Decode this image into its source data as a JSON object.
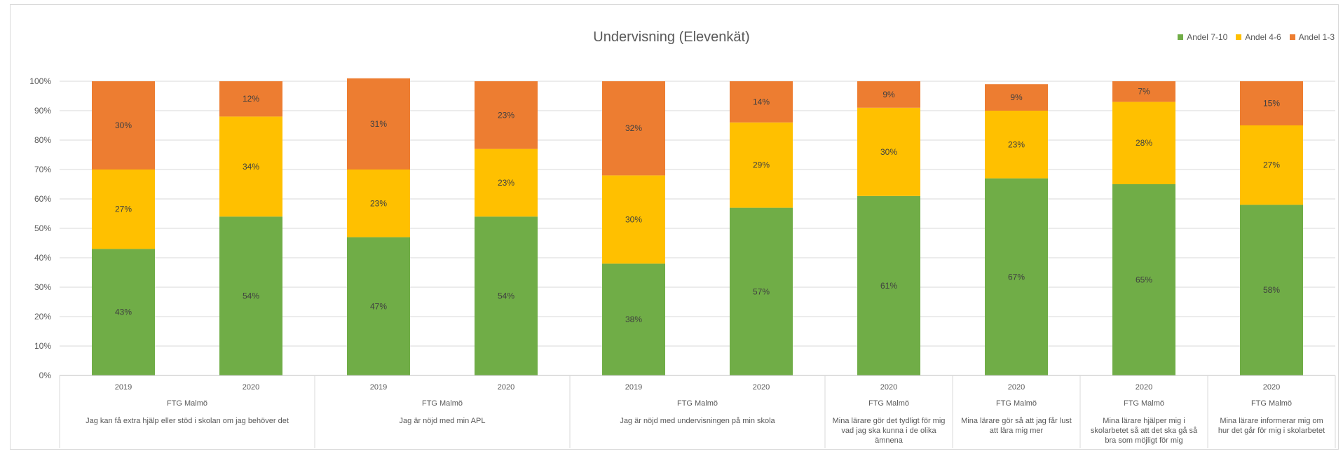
{
  "chart_data": {
    "type": "bar",
    "stacked": true,
    "title": "Undervisning (Elevenkät)",
    "ylim": [
      0,
      100
    ],
    "yticks": [
      "0%",
      "10%",
      "20%",
      "30%",
      "40%",
      "50%",
      "60%",
      "70%",
      "80%",
      "90%",
      "100%"
    ],
    "grid": true,
    "legend_position": "top-right",
    "legend": [
      "Andel 7-10",
      "Andel 4-6",
      "Andel 1-3"
    ],
    "colors": {
      "Andel 7-10": "#70ad47",
      "Andel 4-6": "#ffc000",
      "Andel 1-3": "#ed7d31"
    },
    "groups": [
      {
        "unit": "FTG Malmö",
        "question": [
          "Jag kan få extra hjälp eller stöd i skolan om jag behöver det"
        ],
        "years": [
          "2019",
          "2020"
        ]
      },
      {
        "unit": "FTG Malmö",
        "question": [
          "Jag är nöjd med min APL"
        ],
        "years": [
          "2019",
          "2020"
        ]
      },
      {
        "unit": "FTG Malmö",
        "question": [
          "Jag är nöjd med undervisningen på min skola"
        ],
        "years": [
          "2019",
          "2020"
        ]
      },
      {
        "unit": "FTG Malmö",
        "question": [
          "Mina lärare gör det tydligt för mig",
          "vad jag ska kunna i de olika",
          "ämnena"
        ],
        "years": [
          "2020"
        ]
      },
      {
        "unit": "FTG Malmö",
        "question": [
          "Mina lärare gör så att jag får lust",
          "att lära mig mer"
        ],
        "years": [
          "2020"
        ]
      },
      {
        "unit": "FTG Malmö",
        "question": [
          "Mina lärare hjälper mig i",
          "skolarbetet så att det ska gå så",
          "bra som möjligt för mig"
        ],
        "years": [
          "2020"
        ]
      },
      {
        "unit": "FTG Malmö",
        "question": [
          "Mina lärare informerar mig om",
          "hur det går för mig i skolarbetet"
        ],
        "years": [
          "2020"
        ]
      }
    ],
    "series": [
      {
        "name": "Andel 7-10",
        "values": [
          43,
          54,
          47,
          54,
          38,
          57,
          61,
          67,
          65,
          58
        ]
      },
      {
        "name": "Andel 4-6",
        "values": [
          27,
          34,
          23,
          23,
          30,
          29,
          30,
          23,
          28,
          27
        ]
      },
      {
        "name": "Andel 1-3",
        "values": [
          30,
          12,
          31,
          23,
          32,
          14,
          9,
          9,
          7,
          15
        ]
      }
    ]
  }
}
